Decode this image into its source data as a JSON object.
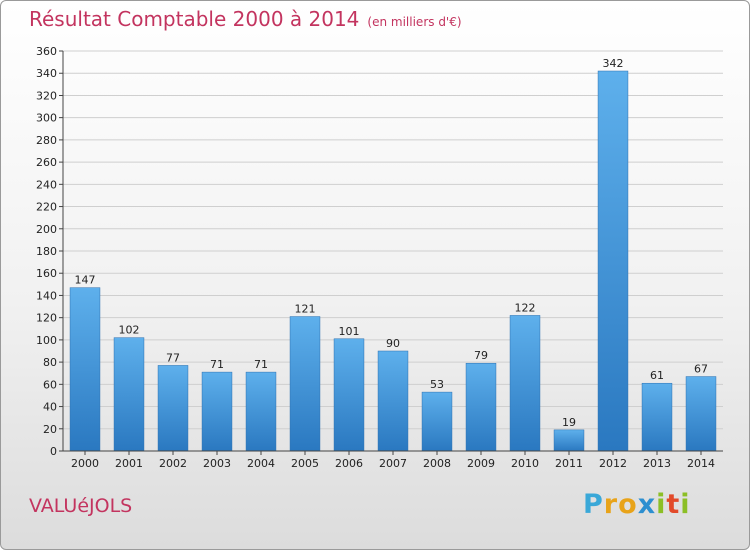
{
  "title": "Résultat Comptable 2000 à 2014",
  "unit": "(en milliers d'€)",
  "commune": "VALUéJOLS",
  "logo": {
    "text": "Proxiti",
    "letters": [
      {
        "char": "P",
        "color": "#3aa8d8"
      },
      {
        "char": "r",
        "color": "#e8a319"
      },
      {
        "char": "o",
        "color": "#e8a319"
      },
      {
        "char": "x",
        "color": "#2d8fd0"
      },
      {
        "char": "i",
        "color": "#8cbf26"
      },
      {
        "char": "t",
        "color": "#e24a2a"
      },
      {
        "char": "i",
        "color": "#8cbf26"
      }
    ]
  },
  "chart_data": {
    "type": "bar",
    "categories": [
      "2000",
      "2001",
      "2002",
      "2003",
      "2004",
      "2005",
      "2006",
      "2007",
      "2008",
      "2009",
      "2010",
      "2011",
      "2012",
      "2013",
      "2014"
    ],
    "values": [
      147,
      102,
      77,
      71,
      71,
      121,
      101,
      90,
      53,
      79,
      122,
      19,
      342,
      61,
      67
    ],
    "ylim": [
      0,
      360
    ],
    "ytick_step": 20,
    "grid": true,
    "colors": {
      "bar_light": "#5eb0ec",
      "bar_dark": "#2a78c0",
      "grid": "#cfcfcf",
      "axis": "#444444"
    }
  }
}
